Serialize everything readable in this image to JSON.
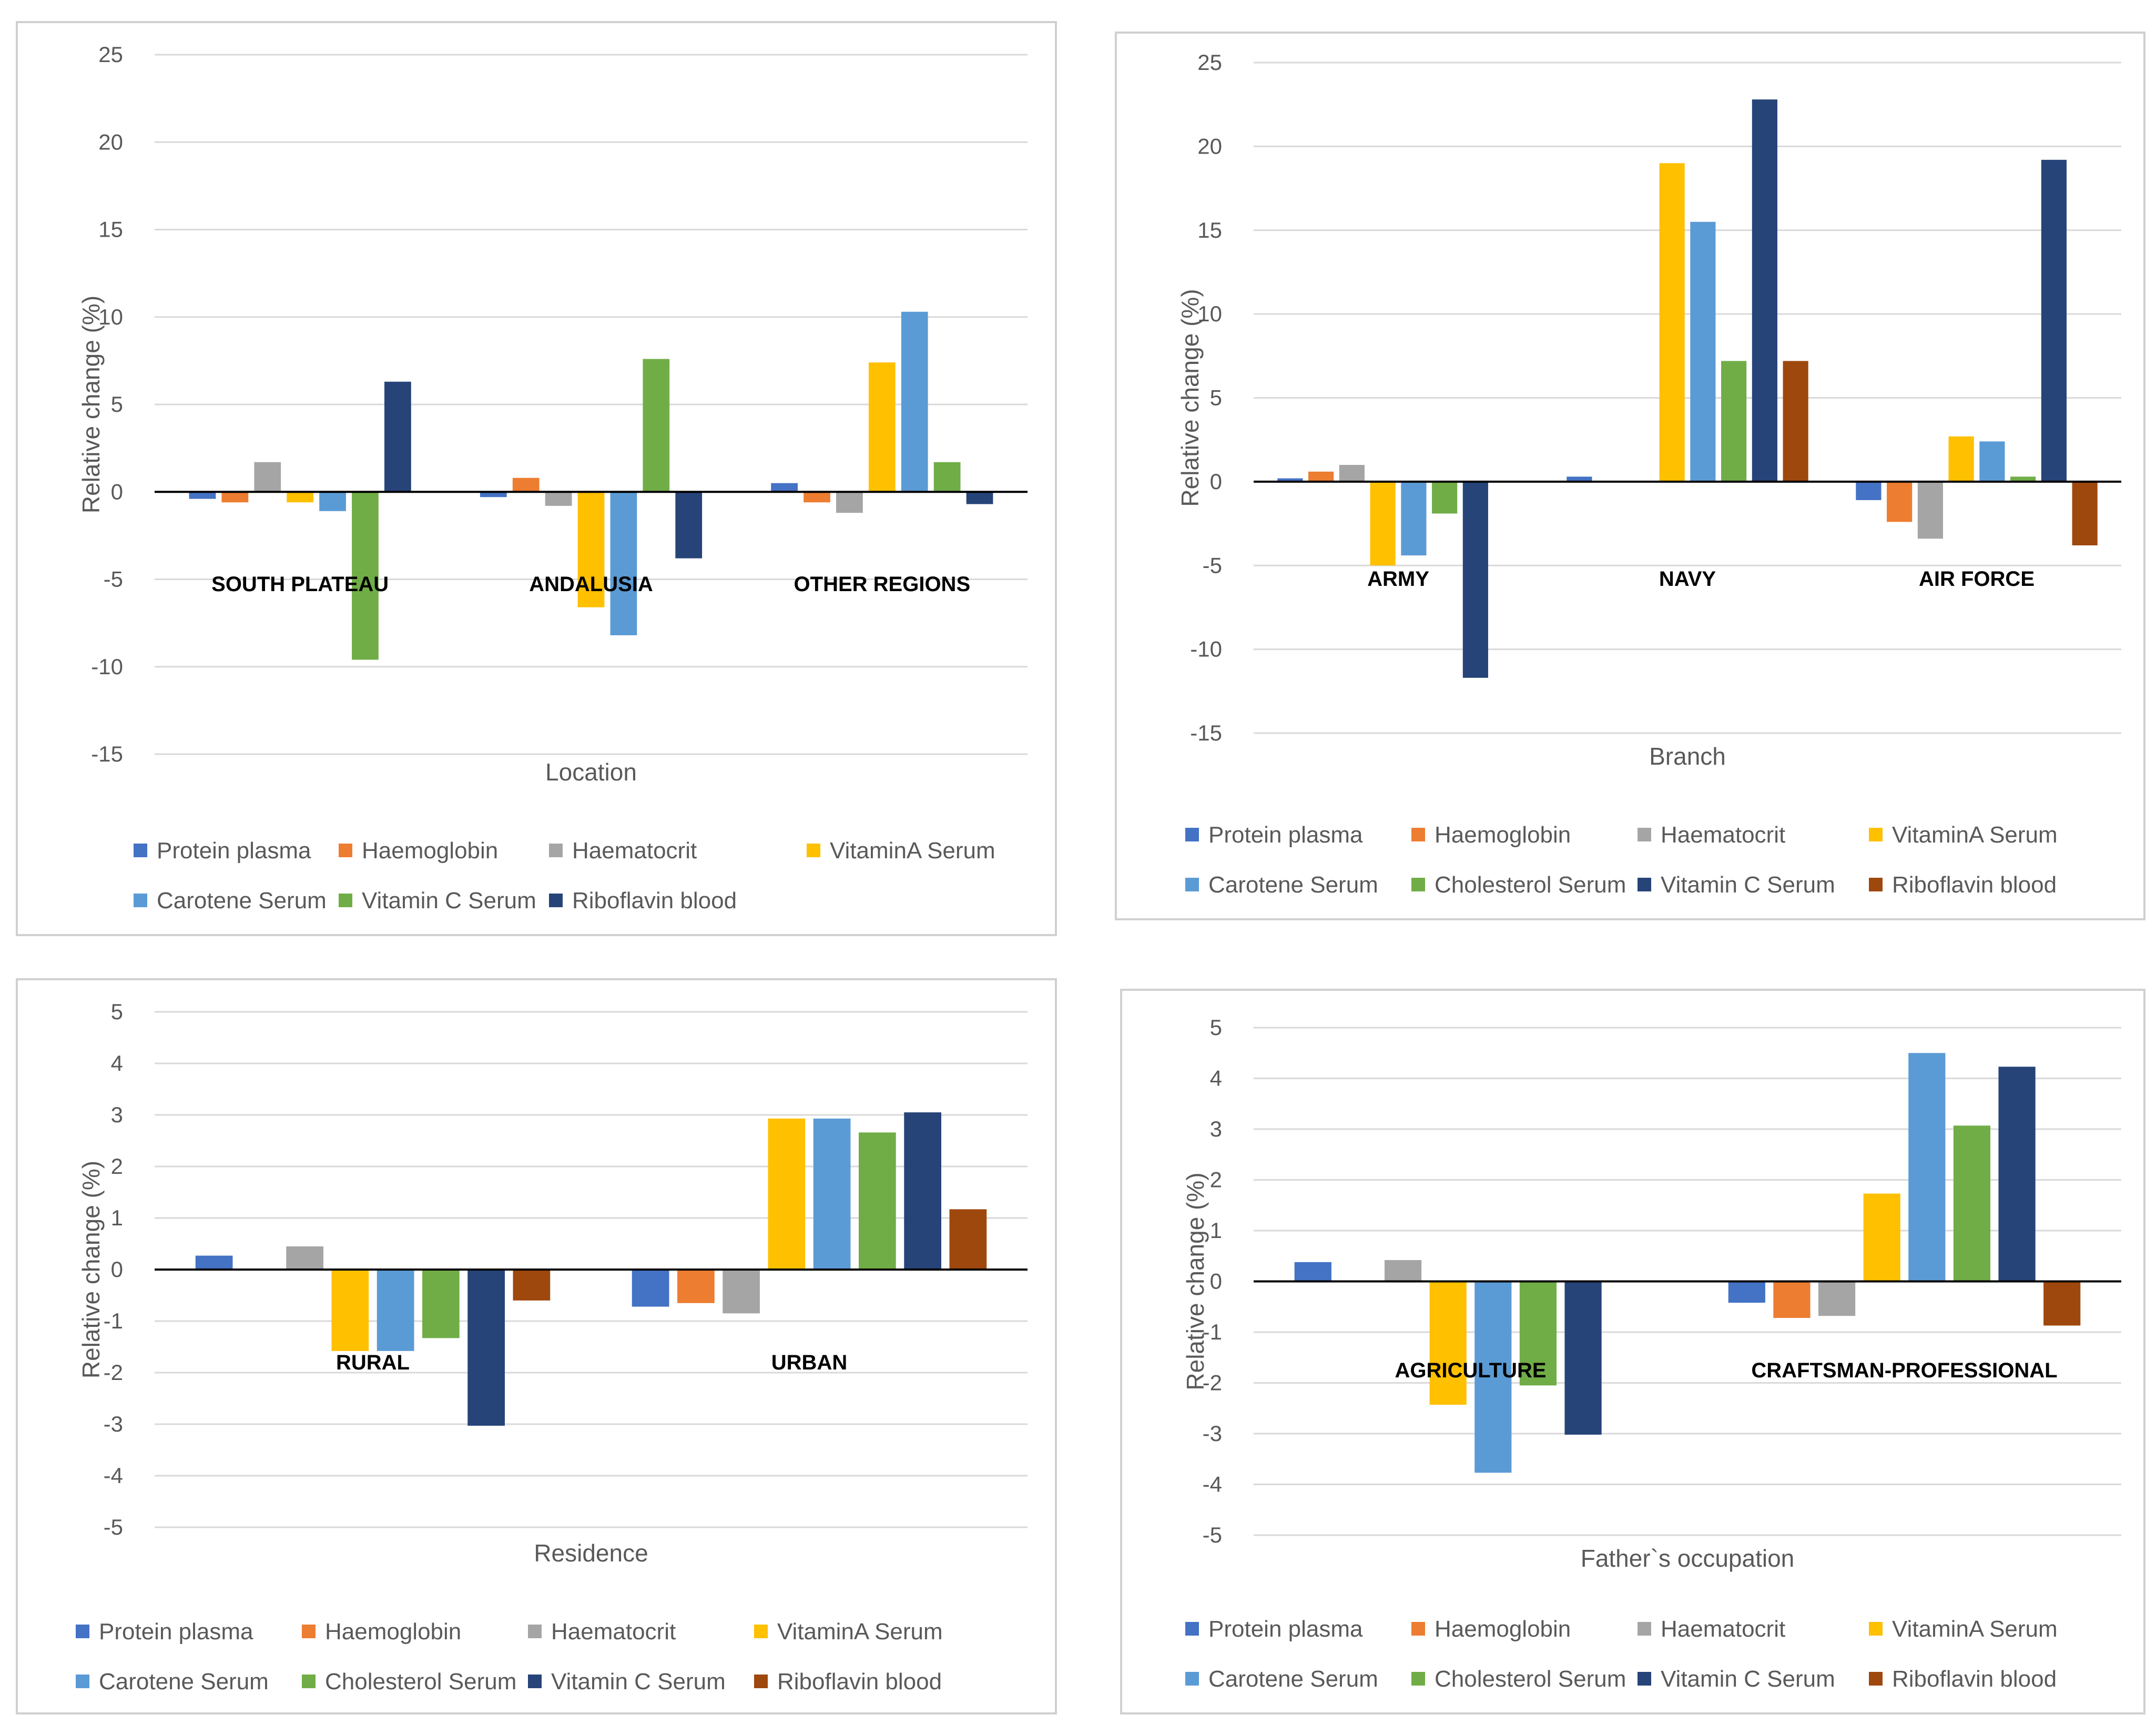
{
  "colors": {
    "Protein plasma": "#4472C4",
    "Haemoglobin": "#ED7D31",
    "Haematocrit": "#A5A5A5",
    "VitaminA Serum": "#FFC000",
    "Carotene Serum": "#5B9BD5",
    "Vitamin C Serum": "#70AD47",
    "Cholesterol Serum": "#70AD47",
    "Riboflavin  blood": "#264478",
    "Vitamin C Serum (navy)": "#264478",
    "Riboflavin  blood (brown)": "#9E480E"
  },
  "chart_data": [
    {
      "type": "bar",
      "title": "",
      "xlabel": "Location",
      "ylabel": "Relative change (%)",
      "ylim": [
        -15,
        25
      ],
      "ystep": 5,
      "categories": [
        "SOUTH PLATEAU",
        "ANDALUSIA",
        "OTHER REGIONS"
      ],
      "series": [
        {
          "name": "Protein plasma",
          "color": "#4472C4",
          "values": [
            -0.4,
            -0.3,
            0.5
          ]
        },
        {
          "name": "Haemoglobin",
          "color": "#ED7D31",
          "values": [
            -0.6,
            0.8,
            -0.6
          ]
        },
        {
          "name": "Haematocrit",
          "color": "#A5A5A5",
          "values": [
            1.7,
            -0.8,
            -1.2
          ]
        },
        {
          "name": "VitaminA Serum",
          "color": "#FFC000",
          "values": [
            -0.6,
            -6.6,
            7.4
          ]
        },
        {
          "name": "Carotene Serum",
          "color": "#5B9BD5",
          "values": [
            -1.1,
            -8.2,
            10.3
          ]
        },
        {
          "name": "Vitamin C Serum",
          "color": "#70AD47",
          "values": [
            -9.6,
            7.6,
            1.7
          ]
        },
        {
          "name": "Riboflavin  blood",
          "color": "#264478",
          "values": [
            6.3,
            -3.8,
            -0.7
          ]
        }
      ]
    },
    {
      "type": "bar",
      "title": "",
      "xlabel": "Branch",
      "ylabel": "Relative change (%)",
      "ylim": [
        -15,
        25
      ],
      "ystep": 5,
      "categories": [
        "ARMY",
        "NAVY",
        "AIR FORCE"
      ],
      "series": [
        {
          "name": "Protein plasma",
          "color": "#4472C4",
          "values": [
            0.2,
            0.3,
            -1.1
          ]
        },
        {
          "name": "Haemoglobin",
          "color": "#ED7D31",
          "values": [
            0.6,
            0,
            -2.4
          ]
        },
        {
          "name": "Haematocrit",
          "color": "#A5A5A5",
          "values": [
            1.0,
            0,
            -3.4
          ]
        },
        {
          "name": "VitaminA Serum",
          "color": "#FFC000",
          "values": [
            -5.0,
            19.0,
            2.7
          ]
        },
        {
          "name": "Carotene Serum",
          "color": "#5B9BD5",
          "values": [
            -4.4,
            15.5,
            2.4
          ]
        },
        {
          "name": "Cholesterol Serum",
          "color": "#70AD47",
          "values": [
            -1.9,
            7.2,
            0.3
          ]
        },
        {
          "name": "Vitamin C Serum",
          "color": "#264478",
          "values": [
            -11.7,
            22.8,
            19.2
          ]
        },
        {
          "name": "Riboflavin  blood",
          "color": "#9E480E",
          "values": [
            0,
            7.2,
            -3.8
          ]
        }
      ]
    },
    {
      "type": "bar",
      "title": "",
      "xlabel": "Residence",
      "ylabel": "Relative change (%)",
      "ylim": [
        -5,
        5
      ],
      "ystep": 1,
      "categories": [
        "RURAL",
        "URBAN"
      ],
      "series": [
        {
          "name": "Protein plasma",
          "color": "#4472C4",
          "values": [
            0.27,
            -0.72
          ]
        },
        {
          "name": "Haemoglobin",
          "color": "#ED7D31",
          "values": [
            0,
            -0.65
          ]
        },
        {
          "name": "Haematocrit",
          "color": "#A5A5A5",
          "values": [
            0.45,
            -0.85
          ]
        },
        {
          "name": "VitaminA Serum",
          "color": "#FFC000",
          "values": [
            -1.58,
            2.93
          ]
        },
        {
          "name": "Carotene Serum",
          "color": "#5B9BD5",
          "values": [
            -1.58,
            2.93
          ]
        },
        {
          "name": "Cholesterol Serum",
          "color": "#70AD47",
          "values": [
            -1.33,
            2.66
          ]
        },
        {
          "name": "Vitamin C Serum",
          "color": "#264478",
          "values": [
            -3.03,
            3.05
          ]
        },
        {
          "name": "Riboflavin  blood",
          "color": "#9E480E",
          "values": [
            -0.6,
            1.17
          ]
        }
      ]
    },
    {
      "type": "bar",
      "title": "",
      "xlabel": "Father`s occupation",
      "ylabel": "Relative change (%)",
      "ylim": [
        -5,
        5
      ],
      "ystep": 1,
      "categories": [
        "AGRICULTURE",
        "CRAFTSMAN-PROFESSIONAL"
      ],
      "series": [
        {
          "name": "Protein plasma",
          "color": "#4472C4",
          "values": [
            0.38,
            -0.42
          ]
        },
        {
          "name": "Haemoglobin",
          "color": "#ED7D31",
          "values": [
            0,
            -0.72
          ]
        },
        {
          "name": "Haematocrit",
          "color": "#A5A5A5",
          "values": [
            0.42,
            -0.68
          ]
        },
        {
          "name": "VitaminA Serum",
          "color": "#FFC000",
          "values": [
            -2.43,
            1.73
          ]
        },
        {
          "name": "Carotene Serum",
          "color": "#5B9BD5",
          "values": [
            -3.77,
            4.5
          ]
        },
        {
          "name": "Cholesterol Serum",
          "color": "#70AD47",
          "values": [
            -2.05,
            3.07
          ]
        },
        {
          "name": "Vitamin C Serum",
          "color": "#264478",
          "values": [
            -3.02,
            4.23
          ]
        },
        {
          "name": "Riboflavin  blood",
          "color": "#9E480E",
          "values": [
            0,
            -0.87
          ]
        }
      ]
    }
  ]
}
